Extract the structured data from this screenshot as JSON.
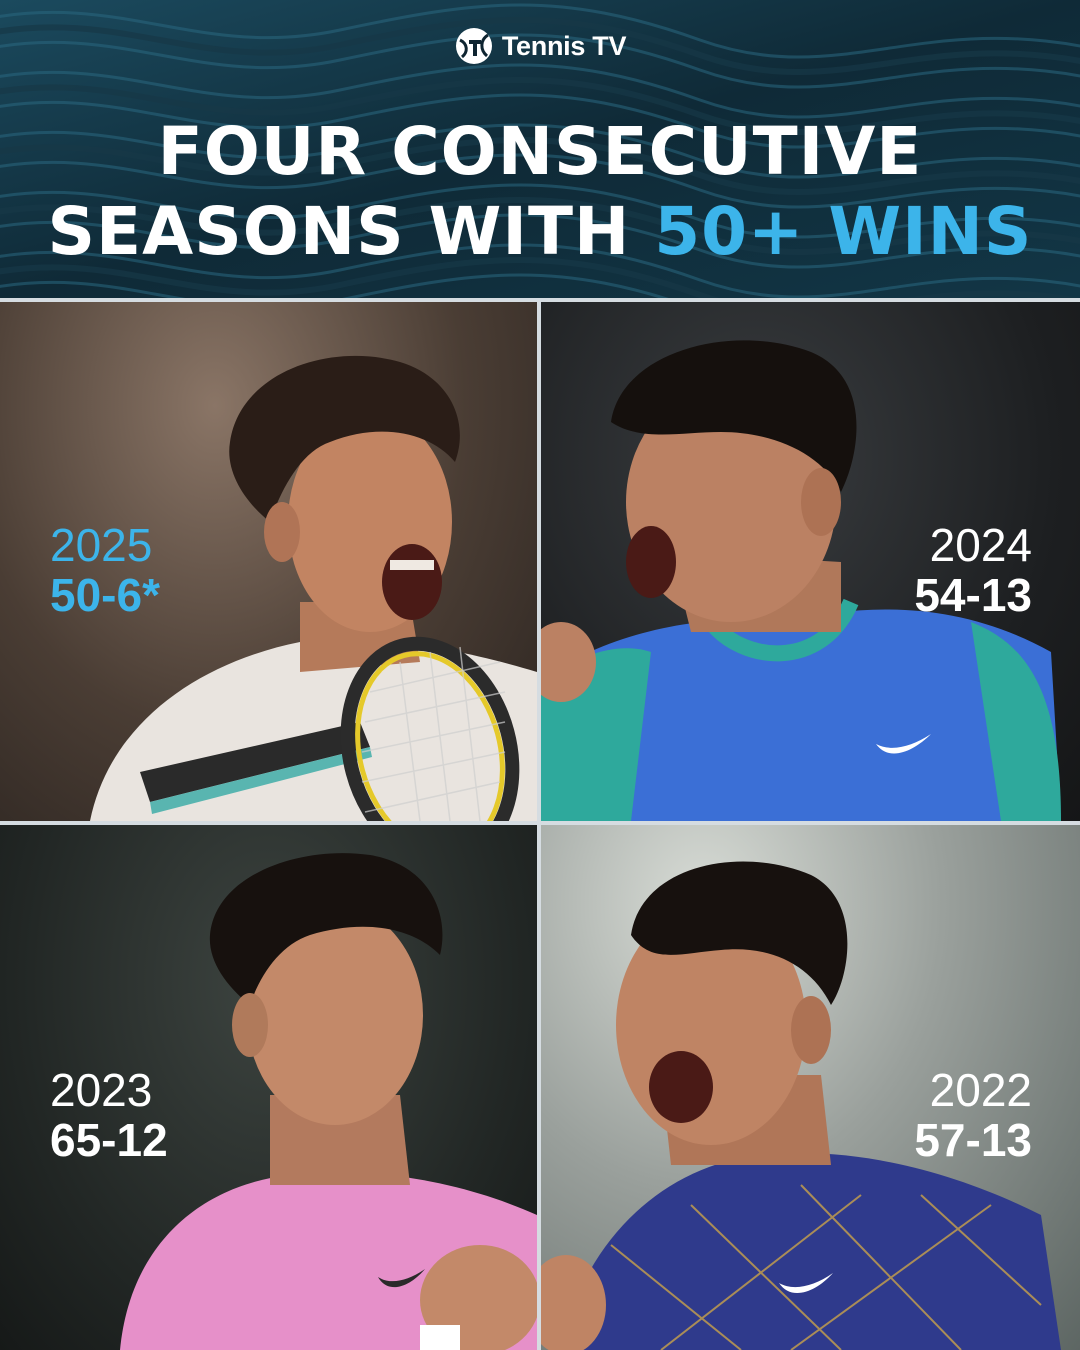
{
  "brand": {
    "name": "Tennis TV",
    "logo_icon": "tennis-tv-logo-icon"
  },
  "headline": {
    "line1": "FOUR CONSECUTIVE",
    "line2_prefix": "SEASONS WITH ",
    "line2_accent": "50+ WINS"
  },
  "colors": {
    "accent": "#3cb4ea",
    "header_bg": "#0e2430",
    "text": "#ffffff"
  },
  "seasons": [
    {
      "year": "2025",
      "record": "50-6*"
    },
    {
      "year": "2024",
      "record": "54-13"
    },
    {
      "year": "2023",
      "record": "65-12"
    },
    {
      "year": "2022",
      "record": "57-13"
    }
  ]
}
